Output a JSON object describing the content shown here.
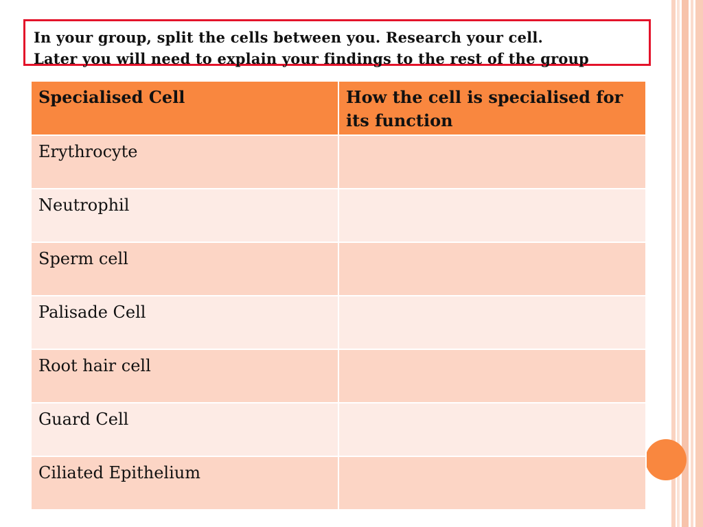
{
  "instruction": {
    "line1": "In your group, split the cells between you. Research your cell.",
    "line2": "Later you will need to explain your findings to the rest of the group"
  },
  "table": {
    "headers": [
      "Specialised Cell",
      "How the cell is specialised for its function"
    ],
    "rows": [
      [
        "Erythrocyte",
        ""
      ],
      [
        "Neutrophil",
        ""
      ],
      [
        "Sperm cell",
        ""
      ],
      [
        "Palisade Cell",
        ""
      ],
      [
        "Root hair cell",
        ""
      ],
      [
        "Guard Cell",
        ""
      ],
      [
        "Ciliated Epithelium",
        ""
      ]
    ]
  },
  "colors": {
    "header": "#f9873f",
    "row_odd": "#fcd5c5",
    "row_even": "#fdebe5",
    "box_border": "#e3132a"
  }
}
